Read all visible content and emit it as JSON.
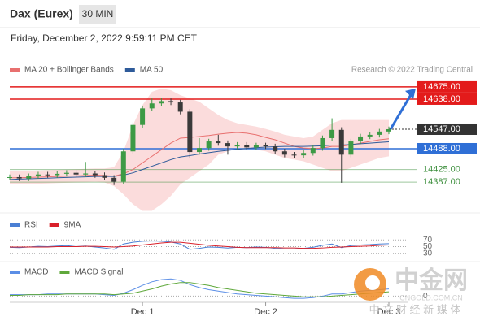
{
  "chart_data": [
    {
      "type": "candlestick",
      "title": "Dax (Eurex)",
      "timeframe": "30 MIN",
      "subtitle": "Friday, December 2, 2022 9:59:11 PM CET",
      "source": "Research © 2022 Trading Central",
      "categories": [
        null,
        null,
        null,
        null,
        null,
        null,
        null,
        null,
        null,
        null,
        null,
        null,
        null,
        null,
        "Dec 1",
        null,
        null,
        null,
        null,
        null,
        null,
        null,
        null,
        null,
        null,
        null,
        null,
        "Dec 2",
        null,
        null,
        null,
        null,
        null,
        null,
        null,
        null,
        null,
        null,
        null,
        null,
        "Dec 3"
      ],
      "open": [
        14400,
        14402,
        14398,
        14405,
        14410,
        14408,
        14412,
        14415,
        14410,
        14413,
        14408,
        14400,
        14388,
        14480,
        14560,
        14610,
        14625,
        14632,
        14628,
        14600,
        14478,
        14490,
        14510,
        14505,
        14495,
        14500,
        14492,
        14498,
        14495,
        14480,
        14470,
        14468,
        14475,
        14490,
        14520,
        14545,
        14470,
        14510,
        14525,
        14530,
        14540
      ],
      "high": [
        14410,
        14410,
        14413,
        14418,
        14418,
        14420,
        14423,
        14423,
        14448,
        14421,
        14416,
        14408,
        14488,
        14568,
        14618,
        14640,
        14642,
        14640,
        14636,
        14608,
        14520,
        14518,
        14530,
        14513,
        14508,
        14508,
        14506,
        14506,
        14503,
        14488,
        14478,
        14483,
        14498,
        14528,
        14580,
        14553,
        14518,
        14533,
        14538,
        14548,
        14555
      ],
      "low": [
        14392,
        14390,
        14390,
        14397,
        14400,
        14400,
        14404,
        14402,
        14402,
        14400,
        14392,
        14378,
        14380,
        14472,
        14552,
        14602,
        14617,
        14620,
        14592,
        14460,
        14470,
        14482,
        14497,
        14470,
        14487,
        14484,
        14484,
        14487,
        14472,
        14462,
        14460,
        14460,
        14467,
        14482,
        14512,
        14385,
        14462,
        14502,
        14517,
        14522,
        14532
      ],
      "close": [
        14402,
        14398,
        14405,
        14410,
        14408,
        14412,
        14415,
        14410,
        14413,
        14408,
        14400,
        14388,
        14480,
        14560,
        14610,
        14625,
        14632,
        14628,
        14600,
        14478,
        14490,
        14510,
        14505,
        14495,
        14500,
        14492,
        14498,
        14495,
        14480,
        14470,
        14468,
        14475,
        14490,
        14520,
        14545,
        14470,
        14510,
        14525,
        14530,
        14540,
        14547
      ],
      "up_color": "#3d9a45",
      "down_color": "#3a3a3a",
      "series": [
        {
          "name": "MA 20 + Bollinger Bands",
          "color": "#e8706f",
          "band_color": "#fbdcdc",
          "values": [
            14400,
            14400,
            14401,
            14402,
            14403,
            14404,
            14405,
            14406,
            14407,
            14408,
            14407,
            14405,
            14412,
            14425,
            14445,
            14465,
            14485,
            14505,
            14520,
            14522,
            14525,
            14528,
            14532,
            14535,
            14537,
            14535,
            14530,
            14522,
            14515,
            14505,
            14495,
            14490,
            14488,
            14490,
            14495,
            14495,
            14500,
            14505,
            14510,
            14515,
            14518
          ],
          "upper": [
            14420,
            14420,
            14421,
            14422,
            14423,
            14424,
            14425,
            14426,
            14427,
            14428,
            14428,
            14432,
            14480,
            14560,
            14620,
            14660,
            14670,
            14665,
            14650,
            14640,
            14630,
            14610,
            14590,
            14575,
            14565,
            14560,
            14555,
            14548,
            14540,
            14530,
            14525,
            14520,
            14525,
            14545,
            14565,
            14575,
            14575,
            14575,
            14575,
            14575,
            14575
          ],
          "lower": [
            14380,
            14380,
            14381,
            14382,
            14383,
            14384,
            14385,
            14386,
            14387,
            14388,
            14386,
            14375,
            14350,
            14320,
            14300,
            14300,
            14320,
            14345,
            14380,
            14400,
            14420,
            14440,
            14470,
            14480,
            14490,
            14490,
            14485,
            14480,
            14470,
            14460,
            14455,
            14450,
            14440,
            14430,
            14420,
            14420,
            14430,
            14440,
            14450,
            14460,
            14465
          ]
        },
        {
          "name": "MA 50",
          "color": "#2e5b9a",
          "values": [
            14395,
            14396,
            14397,
            14398,
            14399,
            14400,
            14401,
            14402,
            14403,
            14404,
            14404,
            14404,
            14408,
            14415,
            14425,
            14435,
            14445,
            14455,
            14463,
            14467,
            14472,
            14476,
            14480,
            14483,
            14486,
            14489,
            14491,
            14493,
            14494,
            14495,
            14495,
            14495,
            14496,
            14497,
            14499,
            14499,
            14501,
            14503,
            14505,
            14507,
            14509
          ]
        }
      ],
      "levels": [
        {
          "value": 14675,
          "label": "14675.00",
          "color": "#e31b1b",
          "line": "solid",
          "tag": "box"
        },
        {
          "value": 14638,
          "label": "14638.00",
          "color": "#e31b1b",
          "line": "solid",
          "tag": "box"
        },
        {
          "value": 14547,
          "label": "14547.00",
          "color": "#333333",
          "line": "dotted",
          "tag": "box"
        },
        {
          "value": 14488,
          "label": "14488.00",
          "color": "#2f6fd6",
          "line": "solid",
          "tag": "box"
        },
        {
          "value": 14425,
          "label": "14425.00",
          "color": "#3d8f3d",
          "line": "solid",
          "tag": "text"
        },
        {
          "value": 14387,
          "label": "14387.00",
          "color": "#3d8f3d",
          "line": "solid",
          "tag": "text"
        }
      ],
      "ylim": [
        14311,
        14692
      ]
    },
    {
      "type": "line",
      "ylim": [
        15,
        90
      ],
      "yticks": [
        70,
        50,
        30
      ],
      "series": [
        {
          "name": "RSI",
          "color": "#4a7fd4",
          "values": [
            48,
            47,
            49,
            51,
            50,
            52,
            53,
            50,
            52,
            49,
            46,
            42,
            58,
            63,
            66,
            67,
            66,
            64,
            58,
            42,
            45,
            49,
            48,
            46,
            48,
            47,
            49,
            48,
            45,
            43,
            43,
            45,
            48,
            54,
            58,
            47,
            53,
            55,
            56,
            58,
            59
          ]
        },
        {
          "name": "9MA",
          "color": "#d9202a",
          "values": [
            49,
            49,
            49,
            49,
            49,
            50,
            50,
            50,
            51,
            51,
            50,
            49,
            50,
            52,
            55,
            58,
            61,
            63,
            63,
            60,
            57,
            54,
            52,
            50,
            48,
            47,
            47,
            47,
            47,
            46,
            46,
            45,
            45,
            46,
            48,
            49,
            50,
            51,
            52,
            54,
            55
          ]
        }
      ]
    },
    {
      "type": "line",
      "ylim": [
        -12,
        30
      ],
      "yticks": [
        0
      ],
      "series": [
        {
          "name": "MACD",
          "color": "#5b8ee6",
          "values": [
            2,
            2,
            2,
            2,
            3,
            3,
            3,
            3,
            3,
            3,
            2,
            1,
            4,
            9,
            15,
            20,
            23,
            24,
            22,
            16,
            12,
            9,
            7,
            5,
            3,
            2,
            1,
            0,
            -1,
            -2,
            -3,
            -3,
            -2,
            0,
            3,
            3,
            5,
            7,
            8,
            9,
            10
          ]
        },
        {
          "name": "MACD Signal",
          "color": "#5fa83b",
          "values": [
            1,
            1,
            2,
            2,
            2,
            2,
            3,
            3,
            3,
            3,
            3,
            2,
            3,
            4,
            7,
            10,
            14,
            17,
            19,
            19,
            17,
            15,
            12,
            10,
            8,
            6,
            4,
            3,
            2,
            1,
            0,
            -1,
            -1,
            -1,
            0,
            1,
            2,
            3,
            4,
            5,
            6
          ]
        }
      ]
    }
  ],
  "watermark": {
    "name": "中金网",
    "site": "CNGOLD.COM.CN",
    "slogan": "中 文 财 经 新 媒 体"
  }
}
